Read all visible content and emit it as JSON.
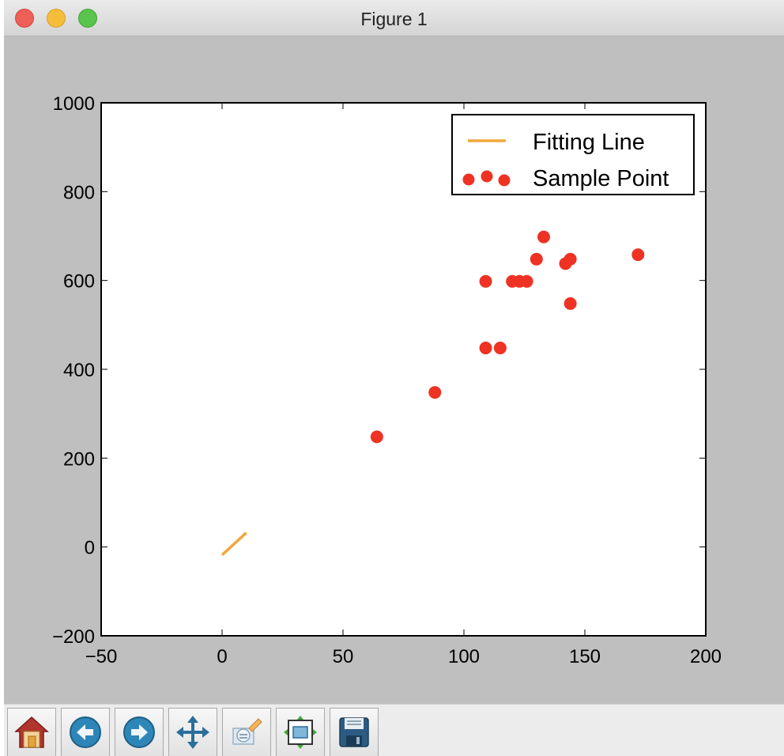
{
  "window": {
    "title": "Figure 1"
  },
  "toolbar": {
    "buttons": [
      {
        "name": "home-icon"
      },
      {
        "name": "back-icon"
      },
      {
        "name": "forward-icon"
      },
      {
        "name": "pan-icon"
      },
      {
        "name": "zoom-icon"
      },
      {
        "name": "subplots-icon"
      },
      {
        "name": "save-icon"
      }
    ]
  },
  "chart_data": {
    "type": "scatter",
    "title": "",
    "xlabel": "",
    "ylabel": "",
    "xlim": [
      -50,
      200
    ],
    "ylim": [
      -200,
      1000
    ],
    "xticks": [
      -50,
      0,
      50,
      100,
      150,
      200
    ],
    "yticks": [
      -200,
      0,
      200,
      400,
      600,
      800,
      1000
    ],
    "xtick_labels": [
      "−50",
      "0",
      "50",
      "100",
      "150",
      "200"
    ],
    "ytick_labels": [
      "−200",
      "0",
      "200",
      "400",
      "600",
      "800",
      "1000"
    ],
    "grid": false,
    "legend": {
      "placement": "upper-right",
      "entries": [
        "Fitting Line",
        "Sample Point"
      ]
    },
    "series": [
      {
        "name": "Fitting Line",
        "kind": "line",
        "color": "#f0a73c",
        "x": [
          0,
          10
        ],
        "y": [
          -18,
          32
        ]
      },
      {
        "name": "Sample Point",
        "kind": "scatter",
        "color": "#ee3224",
        "x": [
          64,
          88,
          109,
          109,
          115,
          120,
          123,
          126,
          130,
          133,
          142,
          144,
          144,
          172
        ],
        "y": [
          248,
          348,
          448,
          598,
          448,
          598,
          598,
          598,
          648,
          698,
          638,
          648,
          548,
          658
        ]
      }
    ]
  }
}
